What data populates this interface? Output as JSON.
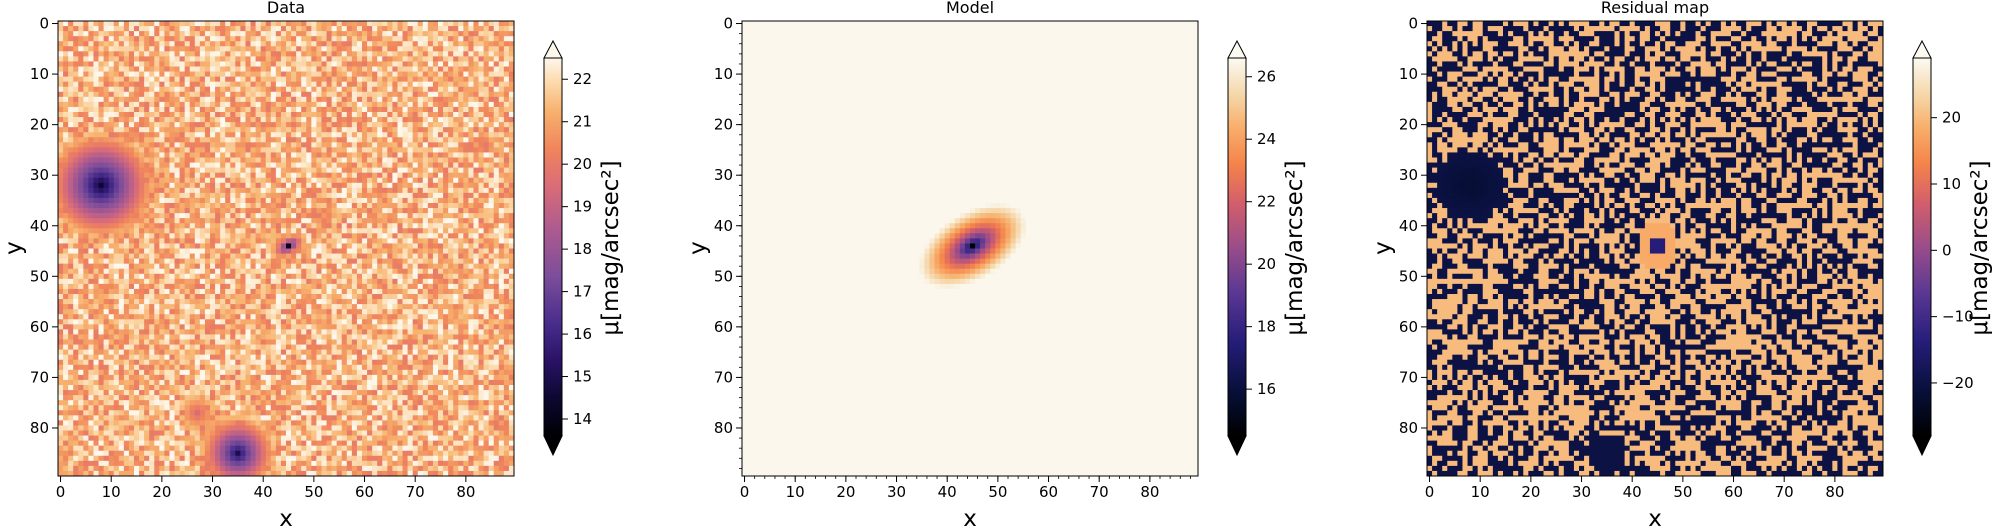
{
  "chart_data": [
    {
      "type": "heatmap",
      "title": "Data",
      "xlabel": "x",
      "ylabel": "y",
      "x_ticks": [
        0,
        10,
        20,
        30,
        40,
        50,
        60,
        70,
        80
      ],
      "y_ticks": [
        0,
        10,
        20,
        30,
        40,
        50,
        60,
        70,
        80
      ],
      "grid_size": 90,
      "y_axis": "inverted (0 at top)",
      "colormap": "magma-like, extended both ends",
      "colorbar_label": "μ[mag/arcsec²]",
      "colorbar_ticks": [
        14,
        15,
        16,
        17,
        18,
        19,
        20,
        21,
        22
      ],
      "colorbar_range": [
        13.6,
        22.5
      ],
      "features": [
        {
          "description": "bright elliptical galaxy",
          "center": [
            44,
            44
          ],
          "peak": 14.0
        },
        {
          "description": "compact source",
          "center": [
            8,
            32
          ],
          "peak": 14.5
        },
        {
          "description": "compact source",
          "center": [
            35,
            85
          ],
          "peak": 15.0
        },
        {
          "description": "faint source",
          "center": [
            27,
            77
          ],
          "peak": 19.5
        }
      ],
      "background": "noisy, approx 20-22.5"
    },
    {
      "type": "heatmap",
      "title": "Model",
      "xlabel": "x",
      "ylabel": "y",
      "x_ticks": [
        0,
        10,
        20,
        30,
        40,
        50,
        60,
        70,
        80
      ],
      "y_ticks": [
        0,
        10,
        20,
        30,
        40,
        50,
        60,
        70,
        80
      ],
      "grid_size": 90,
      "y_axis": "inverted (0 at top)",
      "colormap": "cmr.torch-like, extended both ends",
      "colorbar_label": "μ[mag/arcsec²]",
      "colorbar_ticks": [
        16,
        18,
        20,
        22,
        24,
        26
      ],
      "colorbar_range": [
        14.5,
        26.6
      ],
      "features": [
        {
          "description": "smooth Sérsic-like elliptical model",
          "center": [
            45,
            44
          ],
          "peak": 14.5,
          "edge": 26.5
        }
      ]
    },
    {
      "type": "heatmap",
      "title": "Residual map",
      "xlabel": "x",
      "ylabel": "y",
      "x_ticks": [
        0,
        10,
        20,
        30,
        40,
        50,
        60,
        70,
        80
      ],
      "y_ticks": [
        0,
        10,
        20,
        30,
        40,
        50,
        60,
        70,
        80
      ],
      "grid_size": 90,
      "y_axis": "inverted (0 at top)",
      "colormap": "cmr.torch-like, extended both ends",
      "colorbar_label": "μ[mag/arcsec²]",
      "colorbar_ticks": [
        -20,
        -10,
        0,
        10,
        20
      ],
      "colorbar_range": [
        -28,
        29
      ],
      "features": [
        {
          "description": "residual ring around model center",
          "center": [
            45,
            44
          ]
        },
        {
          "description": "negative residual blob",
          "center": [
            8,
            32
          ]
        },
        {
          "description": "negative residual blob",
          "center": [
            35,
            85
          ]
        }
      ],
      "background": "binary-like speckle of about +20 and -20"
    }
  ]
}
